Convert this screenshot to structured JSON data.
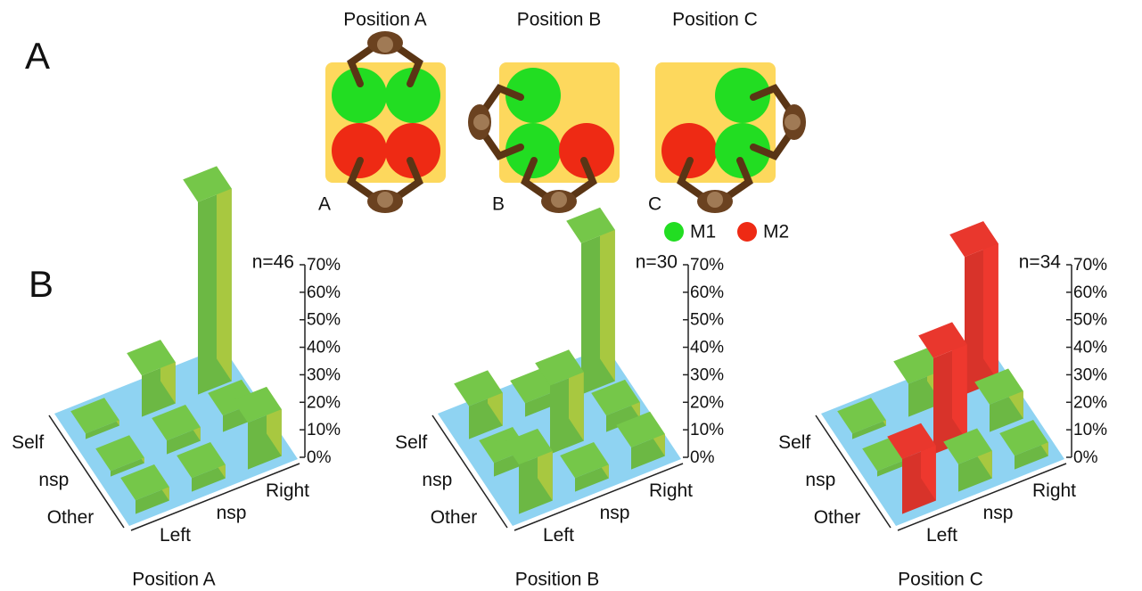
{
  "panel_labels": [
    "A",
    "B"
  ],
  "diagram": {
    "positions": [
      {
        "title": "Position A",
        "label": "A"
      },
      {
        "title": "Position B",
        "label": "B"
      },
      {
        "title": "Position C",
        "label": "C"
      }
    ],
    "legend": [
      {
        "name": "M1",
        "color": "#22dd22"
      },
      {
        "name": "M2",
        "color": "#ee2a14"
      }
    ]
  },
  "chart_data": [
    {
      "type": "bar3d",
      "title": "Position A",
      "n_label": "n=46",
      "x_categories": [
        "Left",
        "nsp",
        "Right"
      ],
      "y_categories": [
        "Self",
        "nsp",
        "Other"
      ],
      "values": [
        [
          2,
          15,
          70
        ],
        [
          2,
          5,
          6
        ],
        [
          5,
          5,
          17
        ]
      ],
      "colors": [
        [
          "#6cb844",
          "#6cb844",
          "#6cb844"
        ],
        [
          "#6cb844",
          "#6cb844",
          "#6cb844"
        ],
        [
          "#6cb844",
          "#6cb844",
          "#6cb844"
        ]
      ],
      "zlim": [
        0,
        70
      ],
      "zticks": [
        {
          "value": 0,
          "label": "0%"
        },
        {
          "value": 10,
          "label": "10%"
        },
        {
          "value": 20,
          "label": "20%"
        },
        {
          "value": 30,
          "label": "30%"
        },
        {
          "value": 40,
          "label": "40%"
        },
        {
          "value": 50,
          "label": "50%"
        },
        {
          "value": 60,
          "label": "60%"
        },
        {
          "value": 70,
          "label": "70%"
        }
      ]
    },
    {
      "type": "bar3d",
      "title": "Position B",
      "n_label": "n=30",
      "x_categories": [
        "Left",
        "nsp",
        "Right"
      ],
      "y_categories": [
        "Self",
        "nsp",
        "Other"
      ],
      "values": [
        [
          12,
          5,
          55
        ],
        [
          5,
          25,
          6
        ],
        [
          18,
          5,
          8
        ]
      ],
      "colors": [
        [
          "#6cb844",
          "#6cb844",
          "#6cb844"
        ],
        [
          "#6cb844",
          "#6cb844",
          "#6cb844"
        ],
        [
          "#6cb844",
          "#6cb844",
          "#6cb844"
        ]
      ],
      "zlim": [
        0,
        70
      ],
      "zticks": [
        {
          "value": 0,
          "label": "0%"
        },
        {
          "value": 10,
          "label": "10%"
        },
        {
          "value": 20,
          "label": "20%"
        },
        {
          "value": 30,
          "label": "30%"
        },
        {
          "value": 40,
          "label": "40%"
        },
        {
          "value": 50,
          "label": "50%"
        },
        {
          "value": 60,
          "label": "60%"
        },
        {
          "value": 70,
          "label": "70%"
        }
      ]
    },
    {
      "type": "bar3d",
      "title": "Position C",
      "n_label": "n=34",
      "x_categories": [
        "Left",
        "nsp",
        "Right"
      ],
      "y_categories": [
        "Self",
        "nsp",
        "Other"
      ],
      "values": [
        [
          2,
          12,
          50
        ],
        [
          2,
          35,
          10
        ],
        [
          20,
          10,
          5
        ]
      ],
      "colors": [
        [
          "#6cb844",
          "#6cb844",
          "#d8332a"
        ],
        [
          "#6cb844",
          "#d8332a",
          "#6cb844"
        ],
        [
          "#d8332a",
          "#6cb844",
          "#6cb844"
        ]
      ],
      "zlim": [
        0,
        70
      ],
      "zticks": [
        {
          "value": 0,
          "label": "0%"
        },
        {
          "value": 10,
          "label": "10%"
        },
        {
          "value": 20,
          "label": "20%"
        },
        {
          "value": 30,
          "label": "30%"
        },
        {
          "value": 40,
          "label": "40%"
        },
        {
          "value": 50,
          "label": "50%"
        },
        {
          "value": 60,
          "label": "60%"
        },
        {
          "value": 70,
          "label": "70%"
        }
      ]
    }
  ]
}
